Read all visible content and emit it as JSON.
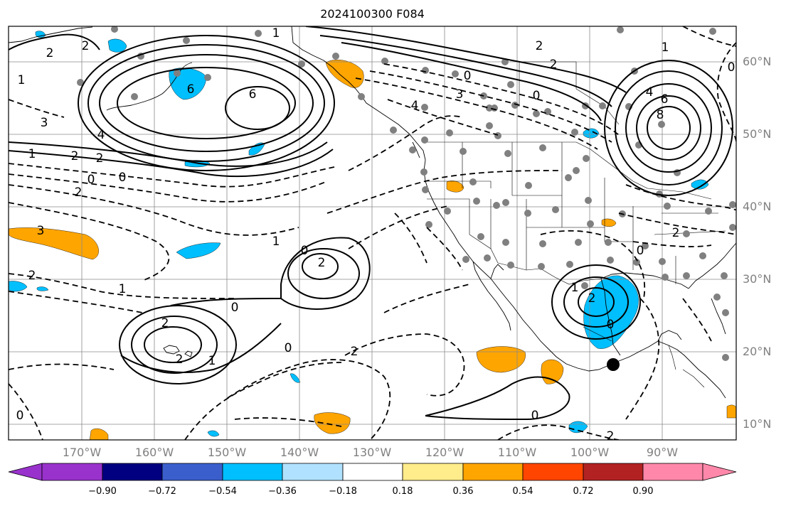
{
  "title": "2024100300 F084",
  "lat_labels": [
    "60°N",
    "50°N",
    "40°N",
    "30°N",
    "20°N",
    "10°N"
  ],
  "lon_labels": [
    "170°W",
    "160°W",
    "150°W",
    "140°W",
    "130°W",
    "120°W",
    "110°W",
    "100°W",
    "90°W"
  ],
  "colorbar": {
    "ticks": [
      "−0.90",
      "−0.72",
      "−0.54",
      "−0.36",
      "−0.18",
      "0.18",
      "0.36",
      "0.54",
      "0.72",
      "0.90"
    ],
    "colors": [
      "#9932cc",
      "#000080",
      "#3a5fcd",
      "#00bfff",
      "#b0e2ff",
      "#ffffff",
      "#ffec8b",
      "#ffa500",
      "#ff4500",
      "#b22222",
      "#ff88aa"
    ]
  },
  "contour_labels": [
    "1",
    "2",
    "2",
    "1",
    "6",
    "6",
    "3",
    "4",
    "1",
    "2",
    "2",
    "0",
    "0",
    "2",
    "3",
    "2",
    "1",
    "0",
    "0",
    "1",
    "2",
    "0",
    "2",
    "2",
    "1",
    "0",
    "2",
    "0",
    "2",
    "4",
    "0",
    "3",
    "2",
    "2",
    "4",
    "6",
    "8",
    "1",
    "0",
    "1",
    "2",
    "0",
    "2",
    "0",
    "0"
  ],
  "legend_colors": {
    "positive_shading": "#ffa500",
    "negative_shading": "#00bfff"
  }
}
